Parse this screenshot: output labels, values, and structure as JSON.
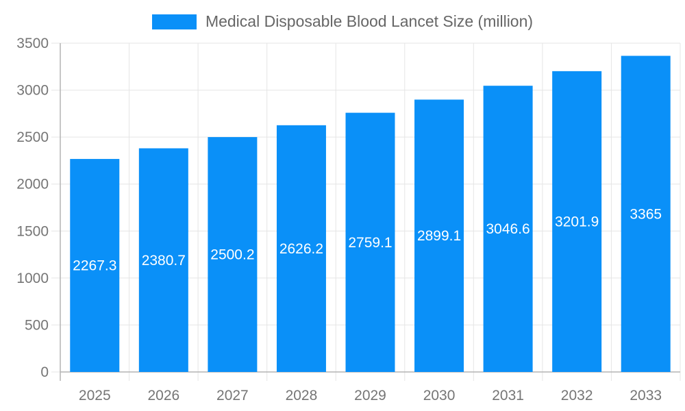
{
  "chart_data": {
    "type": "bar",
    "title": "Medical Disposable Blood Lancet Size (million)",
    "categories": [
      "2025",
      "2026",
      "2027",
      "2028",
      "2029",
      "2030",
      "2031",
      "2032",
      "2033"
    ],
    "values": [
      2267.3,
      2380.7,
      2500.2,
      2626.2,
      2759.1,
      2899.1,
      3046.6,
      3201.9,
      3365
    ],
    "value_labels": [
      "2267.3",
      "2380.7",
      "2500.2",
      "2626.2",
      "2759.1",
      "2899.1",
      "3046.6",
      "3201.9",
      "3365"
    ],
    "y_tick_labels": [
      "0",
      "500",
      "1000",
      "1500",
      "2000",
      "2500",
      "3000",
      "3500"
    ],
    "xlabel": "",
    "ylabel": "",
    "ylim": [
      0,
      3500
    ],
    "ytick_step": 500,
    "grid": true,
    "legend_position": "top",
    "colors": {
      "bar": "#0a90f8",
      "grid": "#e5e5e5",
      "axis": "#b3b3b3",
      "tick_label": "#757575",
      "title": "#666666",
      "value_label": "#ffffff",
      "background": "#ffffff"
    }
  }
}
